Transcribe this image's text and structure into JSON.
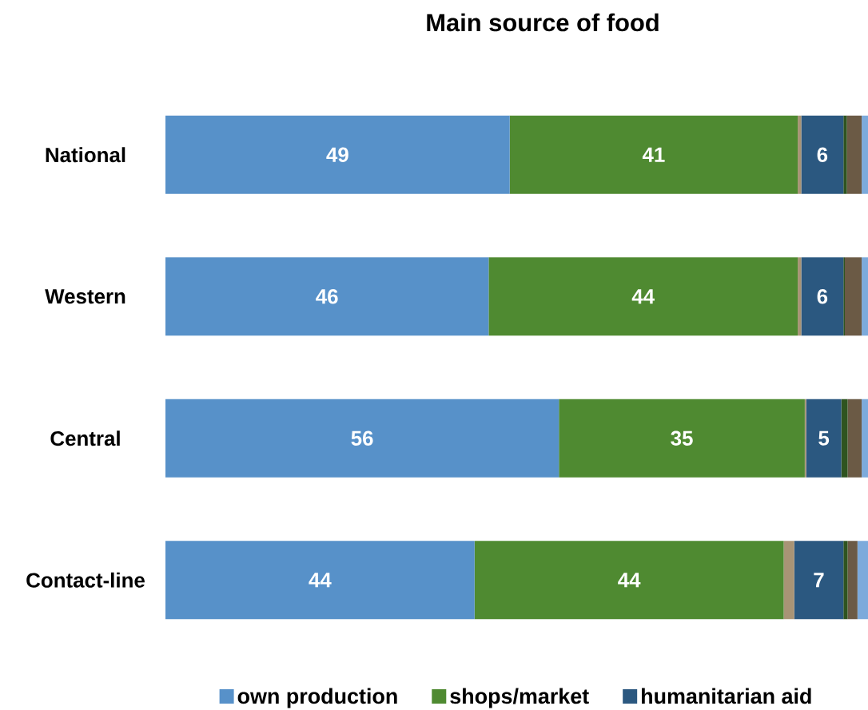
{
  "chart_data": {
    "type": "bar",
    "orientation": "horizontal",
    "stacked": true,
    "title": "Main source of food",
    "categories": [
      "National",
      "Western",
      "Central",
      "Contact-line"
    ],
    "legend": "bottom",
    "series": [
      {
        "name": "own production",
        "color": "#5791C9",
        "values": [
          49,
          46,
          56,
          44
        ],
        "value_labels": [
          "49",
          "46",
          "56",
          "44"
        ]
      },
      {
        "name": "shops/market",
        "color": "#4F8A31",
        "values": [
          41,
          44,
          35,
          44
        ],
        "value_labels": [
          "41",
          "44",
          "35",
          "44"
        ]
      },
      {
        "color": "#A89476",
        "values": [
          0.5,
          0.5,
          0.2,
          1.5
        ]
      },
      {
        "name": "humanitarian aid",
        "color": "#2B5880",
        "values": [
          6,
          6,
          5,
          7
        ],
        "value_labels": [
          "6",
          "6",
          "5",
          "7"
        ]
      },
      {
        "color": "#2F5420",
        "values": [
          0.5,
          0.2,
          0.9,
          0.6
        ]
      },
      {
        "color": "#6B5A45",
        "values": [
          2.1,
          2.4,
          2,
          1.4
        ]
      },
      {
        "color": "#7CAADB",
        "values": [
          0.9,
          0.9,
          0.9,
          1.5
        ]
      }
    ]
  }
}
